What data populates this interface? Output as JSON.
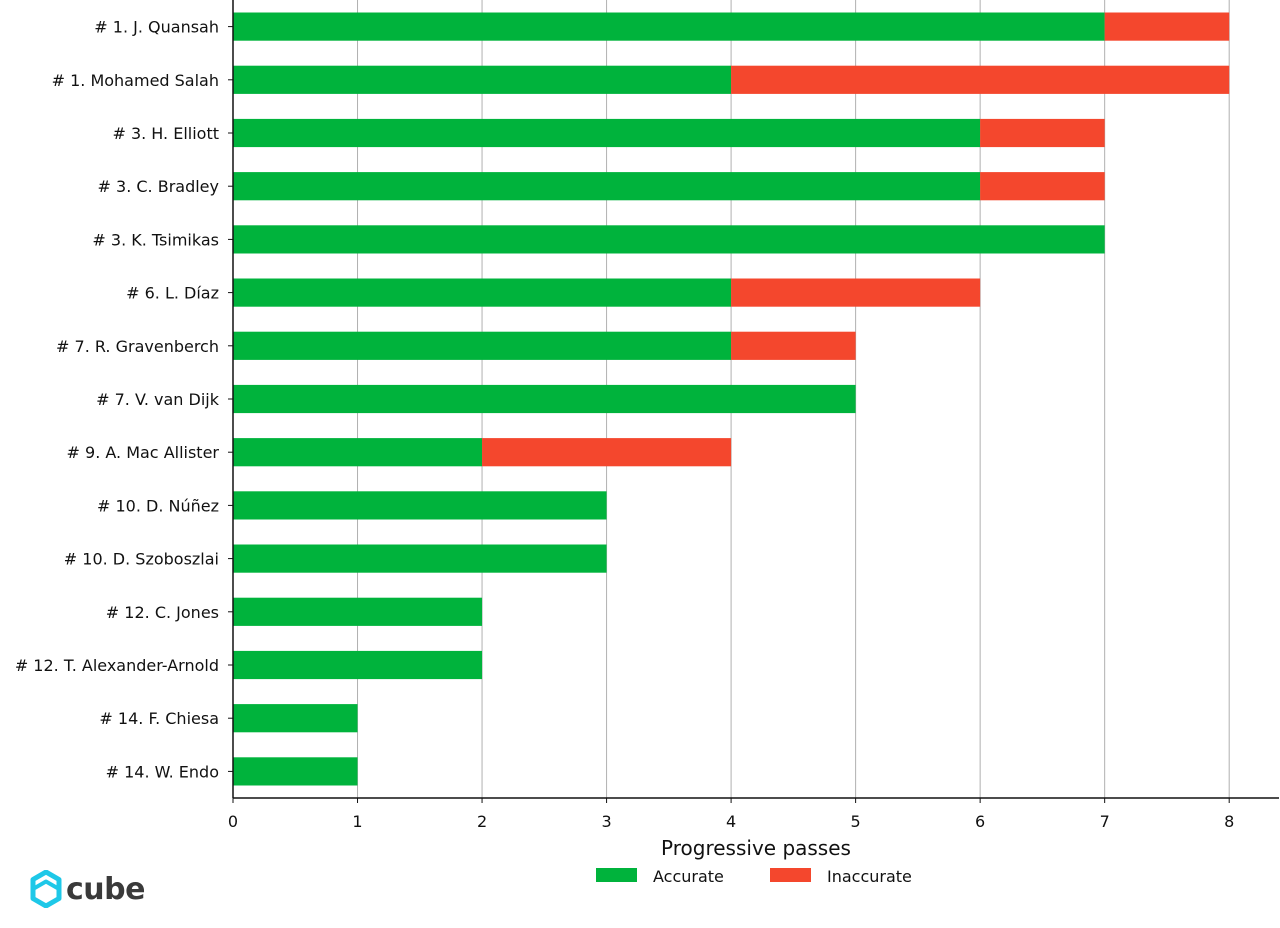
{
  "chart_data": {
    "type": "bar",
    "orientation": "horizontal",
    "stacked": true,
    "categories": [
      "# 1.  J. Quansah",
      "# 1.  Mohamed Salah",
      "# 3.  H. Elliott",
      "# 3.  C. Bradley",
      "# 3.  K. Tsimikas",
      "# 6.  L. Díaz",
      "# 7.  R. Gravenberch",
      "# 7.  V. van Dijk",
      "# 9.  A. Mac Allister",
      "# 10.  D. Núñez",
      "# 10.  D. Szoboszlai",
      "# 12.  C. Jones",
      "# 12.  T. Alexander-Arnold",
      "# 14.  F. Chiesa",
      "# 14.  W. Endo"
    ],
    "series": [
      {
        "name": "Accurate",
        "color": "#00b33c",
        "values": [
          7,
          4,
          6,
          6,
          7,
          4,
          4,
          5,
          2,
          3,
          3,
          2,
          2,
          1,
          1
        ]
      },
      {
        "name": "Inaccurate",
        "color": "#f4472d",
        "values": [
          1,
          4,
          1,
          1,
          0,
          2,
          1,
          0,
          2,
          0,
          0,
          0,
          0,
          0,
          0
        ]
      }
    ],
    "xlabel": "Progressive passes",
    "ylabel": "",
    "xlim": [
      0,
      8.4
    ],
    "xticks": [
      0,
      1,
      2,
      3,
      4,
      5,
      6,
      7,
      8
    ],
    "grid": "vertical",
    "legend": "bottom-center"
  },
  "brand": {
    "name": "cube",
    "color": "#1ec8e8"
  }
}
